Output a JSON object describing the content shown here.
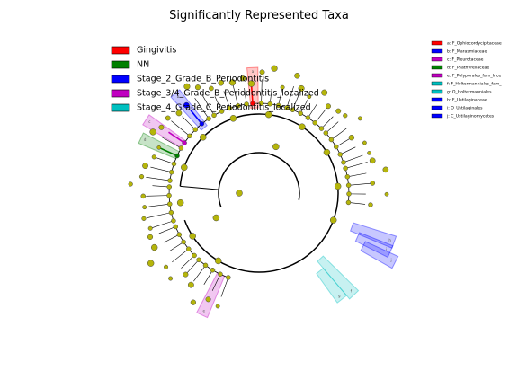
{
  "header": {
    "title": "Significantly Represented Taxa"
  },
  "legend": [
    {
      "label": "Gingivitis",
      "color": "#ff0000"
    },
    {
      "label": "NN",
      "color": "#007f00"
    },
    {
      "label": "Stage_2_Grade_B_Periodontitis",
      "color": "#0000ff"
    },
    {
      "label": "Stage_3/4_Grade_B_Periodontitis_localized",
      "color": "#c000c0"
    },
    {
      "label": "Stage_4_Grade_C_Periodontitis_localized",
      "color": "#00c0c0"
    }
  ],
  "taxa_legend": [
    {
      "label": "a: F_Ophiocordycipitaceae",
      "color": "#ff0000"
    },
    {
      "label": "b: F_Marasmiaceae",
      "color": "#0000ff"
    },
    {
      "label": "c: F_Pleurotaceae",
      "color": "#c000c0"
    },
    {
      "label": "d: F_Psathyrellaceae",
      "color": "#007f00"
    },
    {
      "label": "e: F_Polyporales_fam_Ince",
      "color": "#c000c0"
    },
    {
      "label": "f: F_Holtermanniales_fam_",
      "color": "#00c0c0"
    },
    {
      "label": "g: O_Holtermanniales",
      "color": "#00c0c0"
    },
    {
      "label": "h: F_Ustilaginaceae",
      "color": "#0000ff"
    },
    {
      "label": "i: O_Ustilaginales",
      "color": "#0000ff"
    },
    {
      "label": "j: C_Ustilaginomycetes",
      "color": "#0000ff"
    }
  ],
  "clades": [
    {
      "label": "a",
      "color": "#ff0000"
    },
    {
      "label": "b",
      "color": "#0000ff"
    },
    {
      "label": "c",
      "color": "#c000c0"
    },
    {
      "label": "d",
      "color": "#007f00"
    },
    {
      "label": "e",
      "color": "#c000c0"
    },
    {
      "label": "f",
      "color": "#00c0c0"
    },
    {
      "label": "g",
      "color": "#00c0c0"
    },
    {
      "label": "h",
      "color": "#0000ff"
    },
    {
      "label": "i",
      "color": "#0000ff"
    },
    {
      "label": "j",
      "color": "#0000ff"
    }
  ]
}
